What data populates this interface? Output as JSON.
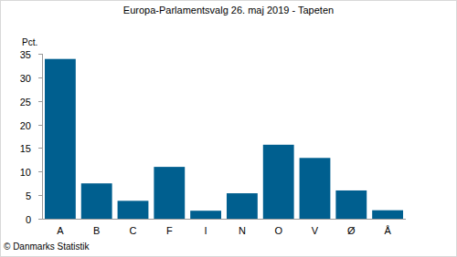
{
  "chart_data": {
    "type": "bar",
    "title": "Europa-Parlamentsvalg 26. maj 2019 - Tapeten",
    "y_label": "Pct.",
    "source": "© Danmarks Statistik",
    "categories": [
      "A",
      "B",
      "C",
      "F",
      "I",
      "N",
      "O",
      "V",
      "Ø",
      "Å"
    ],
    "values": [
      33.9,
      7.5,
      3.8,
      11.0,
      1.7,
      5.4,
      15.7,
      12.9,
      6.0,
      1.8
    ],
    "color": "#005f8f",
    "ylim": [
      0,
      35
    ],
    "yticks": [
      0,
      5,
      10,
      15,
      20,
      25,
      30,
      35
    ],
    "grid": false
  }
}
